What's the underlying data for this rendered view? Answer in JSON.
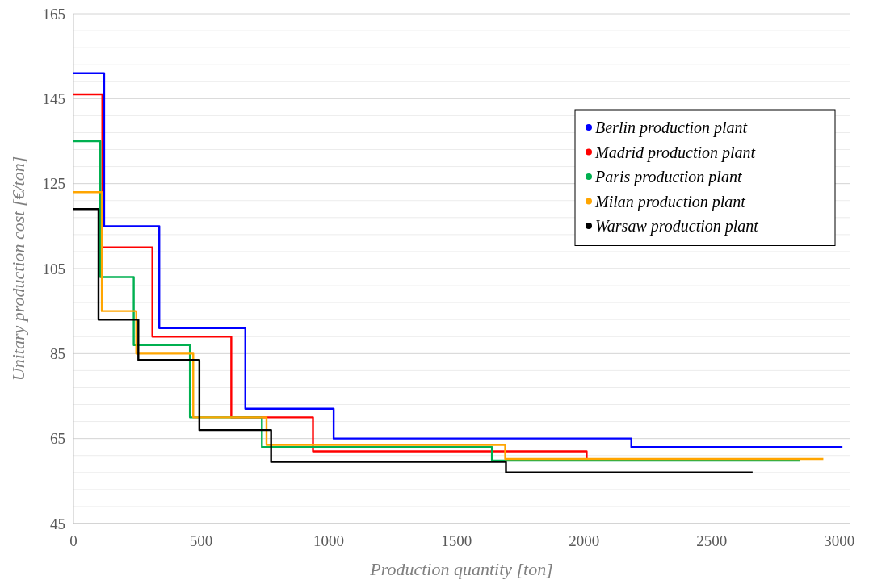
{
  "chart_data": {
    "type": "step",
    "xlabel": "Production quantity [ton]",
    "ylabel": "Unitary production cost [€/ton]",
    "xlim": [
      0,
      3040
    ],
    "xticks": [
      0,
      500,
      1000,
      1500,
      2000,
      2500,
      3000
    ],
    "ylim": [
      45,
      165
    ],
    "yticks": [
      45,
      {
        "value": 49,
        "label": null
      },
      {
        "value": 53,
        "label": null
      },
      {
        "value": 57,
        "label": null
      },
      {
        "value": 61,
        "label": null
      },
      65,
      {
        "value": 69,
        "label": null
      },
      {
        "value": 73,
        "label": null
      },
      {
        "value": 77,
        "label": null
      },
      {
        "value": 81,
        "label": null
      },
      85,
      {
        "value": 89,
        "label": null
      },
      {
        "value": 93,
        "label": null
      },
      {
        "value": 97,
        "label": null
      },
      {
        "value": 101,
        "label": null
      },
      105,
      {
        "value": 109,
        "label": null
      },
      {
        "value": 113,
        "label": null
      },
      {
        "value": 117,
        "label": null
      },
      {
        "value": 121,
        "label": null
      },
      125,
      {
        "value": 129,
        "label": null
      },
      {
        "value": 133,
        "label": null
      },
      {
        "value": 137,
        "label": null
      },
      {
        "value": 141,
        "label": null
      },
      145,
      {
        "value": 149,
        "label": null
      },
      {
        "value": 153,
        "label": null
      },
      {
        "value": 157,
        "label": null
      },
      {
        "value": 161,
        "label": null
      },
      165
    ],
    "grid": "y",
    "legend": "top right",
    "marker": "none",
    "line_style": "solid",
    "series": [
      {
        "name": "Berlin production plant",
        "color": "#0000ff",
        "x": [
          0,
          120,
          336,
          673,
          1019,
          2185,
          3012
        ],
        "values": [
          151,
          115,
          91,
          72,
          65,
          63,
          63
        ]
      },
      {
        "name": "Madrid production plant",
        "color": "#ff0000",
        "x": [
          0,
          113,
          309,
          618,
          938,
          2010
        ],
        "values": [
          146,
          110,
          89,
          70,
          62,
          60
        ]
      },
      {
        "name": "Paris production plant",
        "color": "#00b050",
        "x": [
          0,
          105,
          236,
          456,
          738,
          1639,
          2846
        ],
        "values": [
          135,
          103,
          87,
          70,
          63,
          59.8,
          59.8
        ]
      },
      {
        "name": "Milan production plant",
        "color": "#ffa500",
        "x": [
          0,
          111,
          246,
          469,
          756,
          1691,
          2937
        ],
        "values": [
          123,
          95,
          85,
          70,
          63.5,
          60.2,
          60.2
        ]
      },
      {
        "name": "Warsaw production plant",
        "color": "#000000",
        "x": [
          0,
          98,
          254,
          493,
          774,
          1694,
          2660
        ],
        "values": [
          119,
          93,
          83.5,
          67,
          59.5,
          57,
          57
        ]
      }
    ]
  }
}
